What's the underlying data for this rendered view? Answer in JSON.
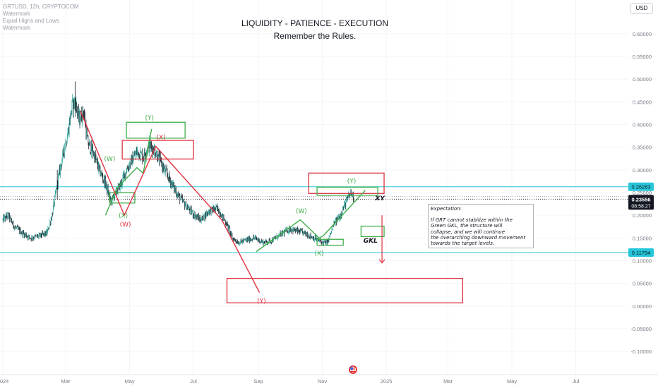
{
  "header": {
    "symbol_line": "GRTUSD, 12h, CRYPTOCOM",
    "indicators": [
      "Watermark",
      "Equal Highs and Lows",
      "Watermark"
    ]
  },
  "titles": {
    "line1": "LIQUIDITY - PATIENCE - EXECUTION",
    "line2": "Remember the Rules."
  },
  "currency_button": "USD",
  "colors": {
    "green": "#3fae49",
    "red": "#e0303e",
    "cyan": "#26c6da",
    "up_candle": "#26a69a",
    "down_candle": "#131722"
  },
  "chart_data": {
    "type": "candlestick",
    "symbol": "GRTUSD",
    "interval": "12h",
    "ylim": [
      -0.12,
      0.62
    ],
    "y_ticks": [
      0.6,
      0.55,
      0.5,
      0.45,
      0.4,
      0.35,
      0.3,
      0.25,
      0.2,
      0.15,
      0.1,
      0.05,
      0.0,
      -0.05,
      -0.1
    ],
    "y_tick_labels": [
      "0.60000",
      "0.55000",
      "0.50000",
      "0.45000",
      "0.40000",
      "0.35000",
      "0.30000",
      "0.25000",
      "0.20000",
      "0.15000",
      "0.10000",
      "0.05000",
      "0.00000",
      "-0.05000",
      "-0.10000"
    ],
    "x_ticks": [
      {
        "label": "2024",
        "date": "2024-01-01"
      },
      {
        "label": "Mar",
        "date": "2024-03-01"
      },
      {
        "label": "May",
        "date": "2024-05-01"
      },
      {
        "label": "Jul",
        "date": "2024-07-01"
      },
      {
        "label": "Sep",
        "date": "2024-09-01"
      },
      {
        "label": "Nov",
        "date": "2024-11-01"
      },
      {
        "label": "2025",
        "date": "2025-01-01"
      },
      {
        "label": "Mar",
        "date": "2025-03-01"
      },
      {
        "label": "May",
        "date": "2025-05-01"
      },
      {
        "label": "Jul",
        "date": "2025-07-01"
      }
    ],
    "price_path": [
      [
        "2024-01-01",
        0.19
      ],
      [
        "2024-01-06",
        0.2
      ],
      [
        "2024-01-12",
        0.175
      ],
      [
        "2024-01-20",
        0.16
      ],
      [
        "2024-01-28",
        0.15
      ],
      [
        "2024-02-05",
        0.155
      ],
      [
        "2024-02-12",
        0.16
      ],
      [
        "2024-02-17",
        0.2
      ],
      [
        "2024-02-22",
        0.27
      ],
      [
        "2024-02-27",
        0.33
      ],
      [
        "2024-03-03",
        0.38
      ],
      [
        "2024-03-07",
        0.44
      ],
      [
        "2024-03-10",
        0.45
      ],
      [
        "2024-03-14",
        0.41
      ],
      [
        "2024-03-18",
        0.43
      ],
      [
        "2024-03-22",
        0.36
      ],
      [
        "2024-03-27",
        0.34
      ],
      [
        "2024-04-02",
        0.3
      ],
      [
        "2024-04-08",
        0.27
      ],
      [
        "2024-04-13",
        0.23
      ],
      [
        "2024-04-18",
        0.25
      ],
      [
        "2024-04-23",
        0.27
      ],
      [
        "2024-04-28",
        0.3
      ],
      [
        "2024-05-03",
        0.32
      ],
      [
        "2024-05-08",
        0.34
      ],
      [
        "2024-05-14",
        0.33
      ],
      [
        "2024-05-20",
        0.355
      ],
      [
        "2024-05-26",
        0.34
      ],
      [
        "2024-06-01",
        0.31
      ],
      [
        "2024-06-08",
        0.28
      ],
      [
        "2024-06-16",
        0.245
      ],
      [
        "2024-06-24",
        0.22
      ],
      [
        "2024-07-02",
        0.2
      ],
      [
        "2024-07-08",
        0.19
      ],
      [
        "2024-07-16",
        0.21
      ],
      [
        "2024-07-24",
        0.215
      ],
      [
        "2024-08-02",
        0.18
      ],
      [
        "2024-08-07",
        0.15
      ],
      [
        "2024-08-13",
        0.14
      ],
      [
        "2024-08-20",
        0.145
      ],
      [
        "2024-08-28",
        0.15
      ],
      [
        "2024-09-06",
        0.14
      ],
      [
        "2024-09-14",
        0.145
      ],
      [
        "2024-09-24",
        0.16
      ],
      [
        "2024-10-01",
        0.17
      ],
      [
        "2024-10-08",
        0.165
      ],
      [
        "2024-10-16",
        0.16
      ],
      [
        "2024-10-24",
        0.15
      ],
      [
        "2024-11-01",
        0.14
      ],
      [
        "2024-11-06",
        0.14
      ],
      [
        "2024-11-12",
        0.18
      ],
      [
        "2024-11-18",
        0.2
      ],
      [
        "2024-11-24",
        0.23
      ],
      [
        "2024-11-28",
        0.25
      ],
      [
        "2024-12-01",
        0.24
      ]
    ],
    "horizontal_levels": [
      {
        "price": 0.26283,
        "label": "0.26283",
        "color": "#26c6da"
      },
      {
        "price": 0.11794,
        "label": "0.11794",
        "color": "#26c6da"
      }
    ],
    "current_price": {
      "price": 0.23556,
      "label": "0.23556",
      "countdown": "08:58:27"
    },
    "drawings": {
      "green_zigzag_1": [
        [
          "2024-04-08",
          0.2
        ],
        [
          "2024-04-19",
          0.26
        ],
        [
          "2024-05-08",
          0.305
        ],
        [
          "2024-05-14",
          0.293
        ],
        [
          "2024-05-22",
          0.39
        ]
      ],
      "red_zigzag_1": [
        [
          "2024-03-15",
          0.43
        ],
        [
          "2024-04-26",
          0.2
        ],
        [
          "2024-05-26",
          0.352
        ],
        [
          "2024-07-28",
          0.19
        ],
        [
          "2024-09-02",
          0.03
        ]
      ],
      "green_zigzag_2": [
        [
          "2024-08-30",
          0.12
        ],
        [
          "2024-10-11",
          0.19
        ],
        [
          "2024-10-29",
          0.15
        ],
        [
          "2024-11-02",
          0.155
        ],
        [
          "2024-12-12",
          0.255
        ]
      ],
      "down_arrow": [
        [
          "2024-12-28",
          0.2
        ],
        [
          "2024-12-28",
          0.095
        ]
      ]
    },
    "zones": [
      {
        "color": "#3fae49",
        "x0": "2024-04-28",
        "x1": "2024-06-23",
        "y0": 0.37,
        "y1": 0.405
      },
      {
        "color": "#e0303e",
        "x0": "2024-04-24",
        "x1": "2024-07-01",
        "y0": 0.324,
        "y1": 0.365
      },
      {
        "color": "#3fae49",
        "x0": "2024-04-12",
        "x1": "2024-05-06",
        "y0": 0.227,
        "y1": 0.25
      },
      {
        "color": "#e0303e",
        "x0": "2024-10-19",
        "x1": "2024-12-30",
        "y0": 0.248,
        "y1": 0.293
      },
      {
        "color": "#3fae49",
        "x0": "2024-10-27",
        "x1": "2024-12-24",
        "y0": 0.244,
        "y1": 0.262
      },
      {
        "color": "#3fae49",
        "x0": "2024-10-27",
        "x1": "2024-11-21",
        "y0": 0.134,
        "y1": 0.147
      },
      {
        "color": "#3fae49",
        "x0": "2024-12-08",
        "x1": "2024-12-30",
        "y0": 0.153,
        "y1": 0.176
      },
      {
        "color": "#e0303e",
        "x0": "2024-08-02",
        "x1": "2025-03-15",
        "y0": 0.007,
        "y1": 0.061
      }
    ],
    "annotations": [
      {
        "text": "(Y)",
        "date": "2024-05-20",
        "price": 0.41,
        "color": "#3fae49",
        "bold": false
      },
      {
        "text": "(X)",
        "date": "2024-05-31",
        "price": 0.367,
        "color": "#e0303e",
        "bold": false
      },
      {
        "text": "(W)",
        "date": "2024-04-12",
        "price": 0.32,
        "color": "#3fae49",
        "bold": false
      },
      {
        "text": "(X)",
        "date": "2024-04-25",
        "price": 0.195,
        "color": "#3fae49",
        "bold": false
      },
      {
        "text": "(W)",
        "date": "2024-04-27",
        "price": 0.175,
        "color": "#e0303e",
        "bold": false
      },
      {
        "text": "(W)",
        "date": "2024-10-12",
        "price": 0.205,
        "color": "#3fae49",
        "bold": false
      },
      {
        "text": "(X)",
        "date": "2024-10-29",
        "price": 0.112,
        "color": "#3fae49",
        "bold": false
      },
      {
        "text": "(Y)",
        "date": "2024-11-29",
        "price": 0.271,
        "color": "#3fae49",
        "bold": false
      },
      {
        "text": "(Y)",
        "date": "2024-09-04",
        "price": 0.007,
        "color": "#e0303e",
        "bold": false
      },
      {
        "text": "XY",
        "date": "2024-12-26",
        "price": 0.233,
        "color": "#131722",
        "bold": true
      },
      {
        "text": "GKL",
        "date": "2024-12-17",
        "price": 0.14,
        "color": "#131722",
        "bold": true
      }
    ]
  },
  "note": {
    "title": "Expectation:",
    "body": "If GRT cannot stabilize within the\nGreen GKL, the structure will\ncollapse, and we will continue\nthe overarching downward movement\ntowards the target levels."
  }
}
